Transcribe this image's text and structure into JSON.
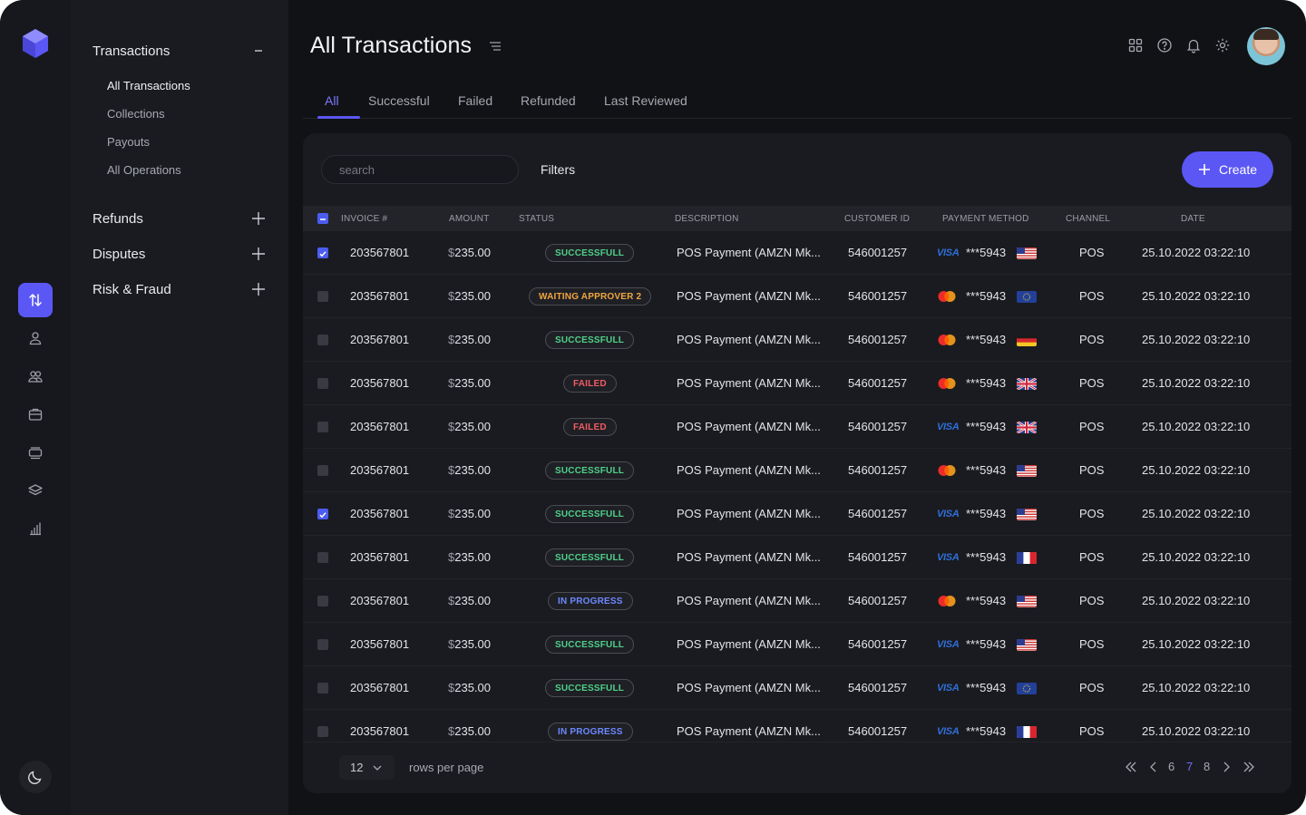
{
  "sidebar": {
    "transactions": {
      "label": "Transactions",
      "items": [
        "All Transactions",
        "Collections",
        "Payouts",
        "All Operations"
      ]
    },
    "refunds": "Refunds",
    "disputes": "Disputes",
    "risk": "Risk & Fraud"
  },
  "page": {
    "title": "All Transactions"
  },
  "tabs": [
    "All",
    "Successful",
    "Failed",
    "Refunded",
    "Last Reviewed"
  ],
  "toolbar": {
    "search_placeholder": "search",
    "filters_label": "Filters",
    "create_label": "Create"
  },
  "columns": [
    "INVOICE #",
    "AMOUNT",
    "STATUS",
    "DESCRIPTION",
    "CUSTOMER ID",
    "PAYMENT METHOD",
    "CHANNEL",
    "DATE"
  ],
  "rows": [
    {
      "checked": true,
      "invoice": "203567801",
      "currency": "$",
      "amount": "235.00",
      "status": "SUCCESSFULL",
      "status_kind": "success",
      "description": "POS Payment (AMZN Mk...",
      "customer_id": "546001257",
      "card": "visa",
      "masked": "***5943",
      "flag": "us",
      "channel": "POS",
      "date": "25.10.2022 03:22:10"
    },
    {
      "checked": false,
      "invoice": "203567801",
      "currency": "$",
      "amount": "235.00",
      "status": "WAITING APPROVER 2",
      "status_kind": "waiting",
      "description": "POS Payment (AMZN Mk...",
      "customer_id": "546001257",
      "card": "mastercard",
      "masked": "***5943",
      "flag": "eu",
      "channel": "POS",
      "date": "25.10.2022 03:22:10"
    },
    {
      "checked": false,
      "invoice": "203567801",
      "currency": "$",
      "amount": "235.00",
      "status": "SUCCESSFULL",
      "status_kind": "success",
      "description": "POS Payment (AMZN Mk...",
      "customer_id": "546001257",
      "card": "mastercard",
      "masked": "***5943",
      "flag": "de",
      "channel": "POS",
      "date": "25.10.2022 03:22:10"
    },
    {
      "checked": false,
      "invoice": "203567801",
      "currency": "$",
      "amount": "235.00",
      "status": "FAILED",
      "status_kind": "failed",
      "description": "POS Payment (AMZN Mk...",
      "customer_id": "546001257",
      "card": "mastercard",
      "masked": "***5943",
      "flag": "uk",
      "channel": "POS",
      "date": "25.10.2022 03:22:10"
    },
    {
      "checked": false,
      "invoice": "203567801",
      "currency": "$",
      "amount": "235.00",
      "status": "FAILED",
      "status_kind": "failed",
      "description": "POS Payment (AMZN Mk...",
      "customer_id": "546001257",
      "card": "visa",
      "masked": "***5943",
      "flag": "uk",
      "channel": "POS",
      "date": "25.10.2022 03:22:10"
    },
    {
      "checked": false,
      "invoice": "203567801",
      "currency": "$",
      "amount": "235.00",
      "status": "SUCCESSFULL",
      "status_kind": "success",
      "description": "POS Payment (AMZN Mk...",
      "customer_id": "546001257",
      "card": "mastercard",
      "masked": "***5943",
      "flag": "us",
      "channel": "POS",
      "date": "25.10.2022 03:22:10"
    },
    {
      "checked": true,
      "invoice": "203567801",
      "currency": "$",
      "amount": "235.00",
      "status": "SUCCESSFULL",
      "status_kind": "success",
      "description": "POS Payment (AMZN Mk...",
      "customer_id": "546001257",
      "card": "visa",
      "masked": "***5943",
      "flag": "us",
      "channel": "POS",
      "date": "25.10.2022 03:22:10"
    },
    {
      "checked": false,
      "invoice": "203567801",
      "currency": "$",
      "amount": "235.00",
      "status": "SUCCESSFULL",
      "status_kind": "success",
      "description": "POS Payment (AMZN Mk...",
      "customer_id": "546001257",
      "card": "visa",
      "masked": "***5943",
      "flag": "fr",
      "channel": "POS",
      "date": "25.10.2022 03:22:10"
    },
    {
      "checked": false,
      "invoice": "203567801",
      "currency": "$",
      "amount": "235.00",
      "status": "IN PROGRESS",
      "status_kind": "progress",
      "description": "POS Payment (AMZN Mk...",
      "customer_id": "546001257",
      "card": "mastercard",
      "masked": "***5943",
      "flag": "us",
      "channel": "POS",
      "date": "25.10.2022 03:22:10"
    },
    {
      "checked": false,
      "invoice": "203567801",
      "currency": "$",
      "amount": "235.00",
      "status": "SUCCESSFULL",
      "status_kind": "success",
      "description": "POS Payment (AMZN Mk...",
      "customer_id": "546001257",
      "card": "visa",
      "masked": "***5943",
      "flag": "us",
      "channel": "POS",
      "date": "25.10.2022 03:22:10"
    },
    {
      "checked": false,
      "invoice": "203567801",
      "currency": "$",
      "amount": "235.00",
      "status": "SUCCESSFULL",
      "status_kind": "success",
      "description": "POS Payment (AMZN Mk...",
      "customer_id": "546001257",
      "card": "visa",
      "masked": "***5943",
      "flag": "eu",
      "channel": "POS",
      "date": "25.10.2022 03:22:10"
    },
    {
      "checked": false,
      "invoice": "203567801",
      "currency": "$",
      "amount": "235.00",
      "status": "IN PROGRESS",
      "status_kind": "progress",
      "description": "POS Payment (AMZN Mk...",
      "customer_id": "546001257",
      "card": "visa",
      "masked": "***5943",
      "flag": "fr",
      "channel": "POS",
      "date": "25.10.2022 03:22:10"
    }
  ],
  "footer": {
    "rows_per_page": "12",
    "rows_per_page_label": "rows per page",
    "pages": [
      "6",
      "7",
      "8"
    ],
    "current_page": "7"
  },
  "colors": {
    "accent": "#5b57f5",
    "success": "#4fd08a",
    "waiting": "#f0a640",
    "failed": "#ef5b63",
    "progress": "#6c88ff"
  }
}
